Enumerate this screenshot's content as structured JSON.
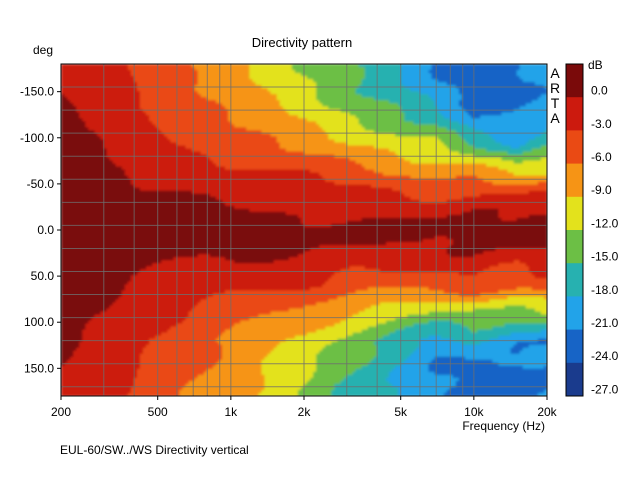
{
  "chart_data": {
    "type": "heatmap",
    "title": "Directivity pattern",
    "ylabel": "deg",
    "xlabel": "Frequency (Hz)",
    "x_scale": "log",
    "xlim": [
      200,
      20000
    ],
    "ylim": [
      -180,
      180
    ],
    "y_inverted": true,
    "x_ticks": [
      {
        "value": 200,
        "label": "200"
      },
      {
        "value": 500,
        "label": "500"
      },
      {
        "value": 1000,
        "label": "1k"
      },
      {
        "value": 2000,
        "label": "2k"
      },
      {
        "value": 5000,
        "label": "5k"
      },
      {
        "value": 10000,
        "label": "10k"
      },
      {
        "value": 20000,
        "label": "20k"
      }
    ],
    "y_ticks": [
      {
        "value": -150,
        "label": "-150.0"
      },
      {
        "value": -100,
        "label": "-100.0"
      },
      {
        "value": -50,
        "label": "-50.0"
      },
      {
        "value": 0,
        "label": "0.0"
      },
      {
        "value": 50,
        "label": "50.0"
      },
      {
        "value": 100,
        "label": "100.0"
      },
      {
        "value": 150,
        "label": "150.0"
      }
    ],
    "colorbar": {
      "unit": "dB",
      "levels": [
        {
          "label": "0.0",
          "color": "#7a0a0a"
        },
        {
          "label": "-3.0",
          "color": "#cc1a0e"
        },
        {
          "label": "-6.0",
          "color": "#ea4a14"
        },
        {
          "label": "-9.0",
          "color": "#f69415"
        },
        {
          "label": "-12.0",
          "color": "#e3e21c"
        },
        {
          "label": "-15.0",
          "color": "#6cbf45"
        },
        {
          "label": "-18.0",
          "color": "#27b1b0"
        },
        {
          "label": "-21.0",
          "color": "#22a3e9"
        },
        {
          "label": "-24.0",
          "color": "#1764c6"
        },
        {
          "label": "-27.0",
          "color": "#1a3b8d"
        }
      ]
    },
    "watermark": "ARTA",
    "grid": true,
    "levels_db": {
      "frequencies_hz": [
        200,
        300,
        500,
        1000,
        2000,
        4000,
        7000,
        10000,
        15000,
        20000
      ],
      "angles_deg": [
        -180,
        -150,
        -120,
        -90,
        -60,
        -30,
        0,
        30,
        60,
        90,
        120,
        150,
        180
      ],
      "values": [
        [
          -3.0,
          -4.0,
          -8.0,
          -11.0,
          -15.0,
          -20.0,
          -24.0,
          -25.0,
          -25.0,
          -23.0
        ],
        [
          -3.0,
          -4.0,
          -7.0,
          -10.5,
          -14.0,
          -19.0,
          -23.0,
          -25.0,
          -25.0,
          -24.0
        ],
        [
          -2.5,
          -3.5,
          -6.5,
          -9.0,
          -12.0,
          -16.0,
          -20.0,
          -24.0,
          -23.0,
          -21.0
        ],
        [
          -2.5,
          -3.0,
          -5.0,
          -7.5,
          -10.0,
          -12.0,
          -14.0,
          -18.0,
          -21.0,
          -17.0
        ],
        [
          -2.0,
          -2.5,
          -4.0,
          -5.0,
          -6.0,
          -8.0,
          -10.0,
          -10.0,
          -12.0,
          -11.0
        ],
        [
          -1.5,
          -2.0,
          -2.5,
          -3.0,
          -4.0,
          -4.5,
          -5.0,
          -4.0,
          -5.0,
          -4.5
        ],
        [
          -0.5,
          -1.0,
          -1.5,
          -1.5,
          -2.0,
          -2.0,
          -2.0,
          -0.5,
          -1.0,
          -1.0
        ],
        [
          -1.5,
          -2.0,
          -2.5,
          -3.0,
          -3.5,
          -4.5,
          -4.5,
          -3.5,
          -4.0,
          -3.5
        ],
        [
          -2.0,
          -2.5,
          -4.0,
          -5.0,
          -6.0,
          -8.0,
          -8.0,
          -7.0,
          -8.0,
          -6.5
        ],
        [
          -2.5,
          -3.0,
          -5.0,
          -7.5,
          -10.0,
          -13.0,
          -15.0,
          -16.0,
          -17.0,
          -15.0
        ],
        [
          -2.5,
          -3.5,
          -6.5,
          -9.5,
          -13.0,
          -18.0,
          -22.0,
          -20.0,
          -24.0,
          -24.0
        ],
        [
          -3.0,
          -4.0,
          -7.0,
          -10.0,
          -14.0,
          -20.0,
          -24.0,
          -24.0,
          -25.0,
          -25.0
        ],
        [
          -3.0,
          -4.0,
          -8.0,
          -11.0,
          -15.0,
          -21.0,
          -24.0,
          -25.0,
          -25.0,
          -24.0
        ]
      ]
    }
  },
  "footer": {
    "caption": "EUL-60/SW../WS Directivity vertical"
  }
}
